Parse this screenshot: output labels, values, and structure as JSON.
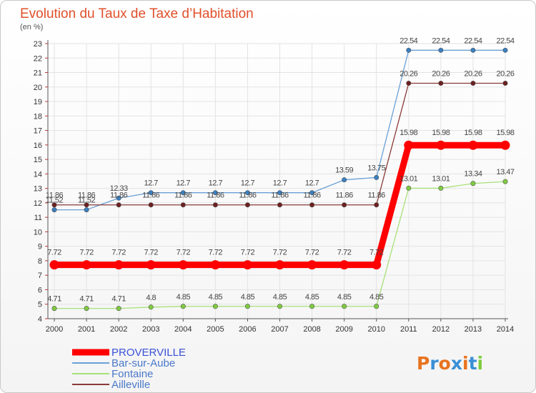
{
  "chart_data": {
    "type": "line",
    "title": "Evolution du Taux de Taxe d’Habitation",
    "subtitle": "(en %)",
    "xlabel": "",
    "ylabel": "",
    "x": [
      "2000",
      "2001",
      "2002",
      "2003",
      "2004",
      "2005",
      "2006",
      "2007",
      "2008",
      "2009",
      "2010",
      "2011",
      "2012",
      "2013",
      "2014"
    ],
    "ylim": [
      4,
      23
    ],
    "yticks": [
      4,
      5,
      6,
      7,
      8,
      9,
      10,
      11,
      12,
      13,
      14,
      15,
      16,
      17,
      18,
      19,
      20,
      21,
      22,
      23
    ],
    "grid": true,
    "legend_position": "bottom-left",
    "series": [
      {
        "name": "PROVERVILLE",
        "color": "#ff0000",
        "values": [
          7.72,
          7.72,
          7.72,
          7.72,
          7.72,
          7.72,
          7.72,
          7.72,
          7.72,
          7.72,
          7.72,
          15.98,
          15.98,
          15.98,
          15.98
        ],
        "labels": [
          "7.72",
          "7.72",
          "7.72",
          "7.72",
          "7.72",
          "7.72",
          "7.72",
          "7.72",
          "7.72",
          "7.72",
          "7.72",
          "15.98",
          "15.98",
          "15.98",
          "15.98"
        ]
      },
      {
        "name": "Bar-sur-Aube",
        "color": "#6aa0d6",
        "marker_color": "#3a7fc0",
        "values": [
          11.52,
          11.52,
          12.33,
          12.7,
          12.7,
          12.7,
          12.7,
          12.7,
          12.7,
          13.59,
          13.75,
          22.54,
          22.54,
          22.54,
          22.54
        ],
        "labels": [
          "11.52",
          "11.52",
          "12.33",
          "12.7",
          "12.7",
          "12.7",
          "12.7",
          "12.7",
          "12.7",
          "13.59",
          "13.75",
          "22.54",
          "22.54",
          "22.54",
          "22.54"
        ]
      },
      {
        "name": "Fontaine",
        "color": "#a8e07a",
        "marker_color": "#7fcc3f",
        "values": [
          4.71,
          4.71,
          4.71,
          4.8,
          4.85,
          4.85,
          4.85,
          4.85,
          4.85,
          4.85,
          4.85,
          13.01,
          13.01,
          13.34,
          13.47
        ],
        "labels": [
          "4.71",
          "4.71",
          "4.71",
          "4.8",
          "4.85",
          "4.85",
          "4.85",
          "4.85",
          "4.85",
          "4.85",
          "4.85",
          "13.01",
          "13.01",
          "13.34",
          "13.47"
        ]
      },
      {
        "name": "Ailleville",
        "color": "#8b3a3a",
        "marker_color": "#6e1f1f",
        "values": [
          11.86,
          11.86,
          11.86,
          11.86,
          11.86,
          11.86,
          11.86,
          11.86,
          11.86,
          11.86,
          11.86,
          20.26,
          20.26,
          20.26,
          20.26
        ],
        "labels": [
          "11.86",
          "11.86",
          "11.86",
          "11.86",
          "11.86",
          "11.86",
          "11.86",
          "11.86",
          "11.86",
          "11.86",
          "11.86",
          "20.26",
          "20.26",
          "20.26",
          "20.26"
        ]
      }
    ]
  },
  "logo": {
    "text": "Proxiti",
    "colors": [
      "#e8731f",
      "#3a8fd6",
      "#e8731f",
      "#3a8fd6",
      "#e8731f",
      "#3a8fd6",
      "#7fcc3f"
    ]
  }
}
